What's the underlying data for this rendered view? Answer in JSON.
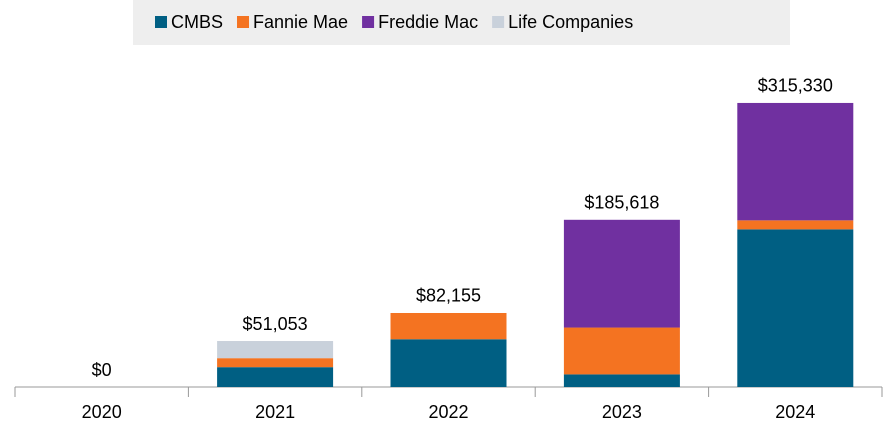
{
  "chart_data": {
    "type": "stacked_bar",
    "categories": [
      "2020",
      "2021",
      "2022",
      "2023",
      "2024"
    ],
    "series": [
      {
        "name": "CMBS",
        "color": "#005f83",
        "values": [
          0,
          22000,
          53000,
          14000,
          175000
        ]
      },
      {
        "name": "Fannie Mae",
        "color": "#f47321",
        "values": [
          0,
          10000,
          29155,
          52000,
          10000
        ]
      },
      {
        "name": "Freddie Mac",
        "color": "#7030a0",
        "values": [
          0,
          0,
          0,
          119618,
          130330
        ]
      },
      {
        "name": "Life Companies",
        "color": "#c9d1db",
        "values": [
          0,
          19053,
          0,
          0,
          0
        ]
      }
    ],
    "totals": [
      0,
      51053,
      82155,
      185618,
      315330
    ],
    "total_labels": [
      "$0",
      "$51,053",
      "$82,155",
      "$185,618",
      "$315,330"
    ],
    "legend": "top"
  }
}
